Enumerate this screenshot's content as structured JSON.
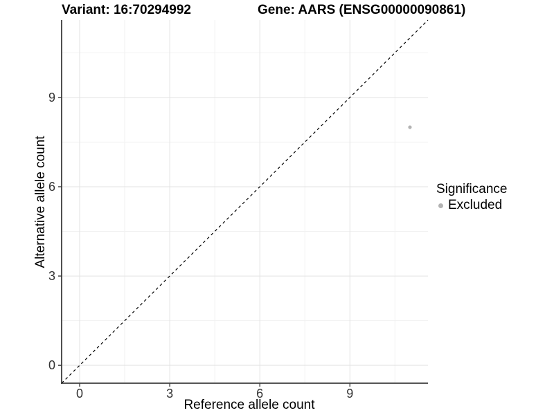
{
  "chart_data": {
    "type": "scatter",
    "title_left": "Variant: 16:70294992",
    "title_right": "Gene: AARS (ENSG00000090861)",
    "xlabel": "Reference allele count",
    "ylabel": "Alternative allele count",
    "xlim": [
      -0.6,
      11.6
    ],
    "ylim": [
      -0.6,
      11.6
    ],
    "x_major_ticks": [
      0,
      3,
      6,
      9
    ],
    "y_major_ticks": [
      0,
      3,
      6,
      9
    ],
    "x_minor_ticks": [
      1.5,
      4.5,
      7.5,
      10.5
    ],
    "y_minor_ticks": [
      1.5,
      4.5,
      7.5,
      10.5
    ],
    "grid": true,
    "identity_line": {
      "slope": 1,
      "intercept": 0,
      "style": "dashed",
      "color": "#000000"
    },
    "series": [
      {
        "name": "Excluded",
        "color": "#b3b3b3",
        "points": [
          {
            "x": 11,
            "y": 8
          }
        ]
      }
    ],
    "legend": {
      "title": "Significance",
      "position": "right",
      "entries": [
        {
          "label": "Excluded",
          "color": "#b3b3b3"
        }
      ]
    }
  },
  "colors": {
    "background": "#ffffff",
    "axis_line": "#3c3c3c",
    "tick_label": "#333333",
    "grid_major": "#e3e3e3",
    "grid_minor": "#f1f1f1",
    "excluded_point": "#b3b3b3",
    "identity_line": "#000000"
  }
}
